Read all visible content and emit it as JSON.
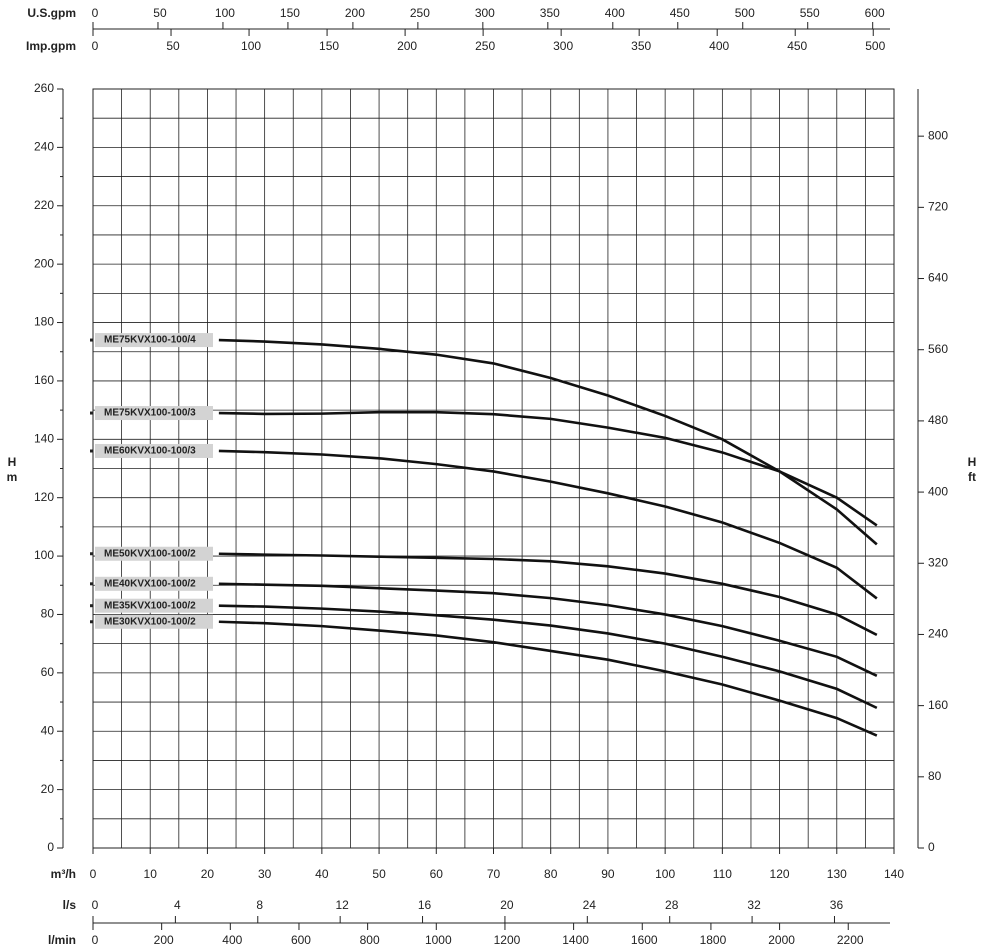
{
  "chart_data": {
    "type": "line",
    "xlabel": "m³/h",
    "ylabel": [
      "H",
      "m"
    ],
    "y2label": [
      "H",
      "ft"
    ],
    "xlim": [
      0,
      140
    ],
    "xticks": [
      0,
      10,
      20,
      30,
      40,
      50,
      60,
      70,
      80,
      90,
      100,
      110,
      120,
      130,
      140
    ],
    "xminor": [
      5,
      15,
      25,
      35,
      45,
      55,
      65,
      75,
      85,
      95,
      105,
      115,
      125,
      135
    ],
    "ylim": [
      0,
      260
    ],
    "yticks": [
      0,
      20,
      40,
      60,
      80,
      100,
      120,
      140,
      160,
      180,
      200,
      220,
      240,
      260
    ],
    "yminor": [
      10,
      30,
      50,
      70,
      90,
      110,
      130,
      150,
      170,
      190,
      210,
      230,
      250
    ],
    "y2lim": [
      0,
      853
    ],
    "y2ticks": [
      0,
      80,
      160,
      240,
      320,
      400,
      480,
      560,
      640,
      720,
      800
    ],
    "grid": true,
    "top_axes": [
      {
        "label": "U.S.gpm",
        "xlim": [
          0,
          616.4
        ],
        "ticks": [
          0,
          50,
          100,
          150,
          200,
          250,
          300,
          350,
          400,
          450,
          500,
          550,
          600
        ]
      },
      {
        "label": "Imp.gpm",
        "xlim": [
          0,
          513.3
        ],
        "ticks": [
          0,
          50,
          100,
          150,
          200,
          250,
          300,
          350,
          400,
          450,
          500
        ]
      }
    ],
    "bottom_axes": [
      {
        "label": "l/s",
        "xlim": [
          0,
          38.89
        ],
        "ticks": [
          0,
          4,
          8,
          12,
          16,
          20,
          24,
          28,
          32,
          36
        ]
      },
      {
        "label": "l/min",
        "xlim": [
          0,
          2333.3
        ],
        "ticks": [
          0,
          200,
          400,
          600,
          800,
          1000,
          1200,
          1400,
          1600,
          1800,
          2000,
          2200
        ]
      }
    ],
    "x": [
      22,
      30,
      40,
      50,
      60,
      70,
      80,
      90,
      100,
      110,
      120,
      130,
      137
    ],
    "series": [
      {
        "name": "ME75KVX100-100/4",
        "color": "#111111",
        "values": [
          174,
          173.5,
          172.5,
          171,
          169,
          166,
          161,
          155,
          148,
          140,
          129,
          116,
          104
        ]
      },
      {
        "name": "ME75KVX100-100/3",
        "color": "#111111",
        "values": [
          149,
          148.7,
          148.8,
          149.3,
          149.3,
          148.6,
          147,
          144,
          140.5,
          135.5,
          129,
          120,
          110.5
        ]
      },
      {
        "name": "ME60KVX100-100/3",
        "color": "#111111",
        "values": [
          136,
          135.6,
          134.8,
          133.5,
          131.5,
          129,
          125.5,
          121.5,
          117,
          111.5,
          104.5,
          96,
          85.5
        ]
      },
      {
        "name": "ME50KVX100-100/2",
        "color": "#111111",
        "values": [
          100.8,
          100.5,
          100.2,
          99.8,
          99.4,
          99,
          98.2,
          96.5,
          94,
          90.5,
          86,
          80,
          73
        ]
      },
      {
        "name": "ME40KVX100-100/2",
        "color": "#111111",
        "values": [
          90.5,
          90.2,
          89.8,
          89,
          88.2,
          87.3,
          85.6,
          83.2,
          80,
          76,
          71,
          65.5,
          59
        ]
      },
      {
        "name": "ME35KVX100-100/2",
        "color": "#111111",
        "values": [
          83,
          82.7,
          82,
          81,
          79.7,
          78.2,
          76.2,
          73.5,
          70,
          65.5,
          60.5,
          54.5,
          48
        ]
      },
      {
        "name": "ME30KVX100-100/2",
        "color": "#111111",
        "values": [
          77.5,
          77,
          76,
          74.5,
          72.8,
          70.5,
          67.5,
          64.5,
          60.5,
          56,
          50.5,
          44.5,
          38.5
        ]
      }
    ]
  }
}
